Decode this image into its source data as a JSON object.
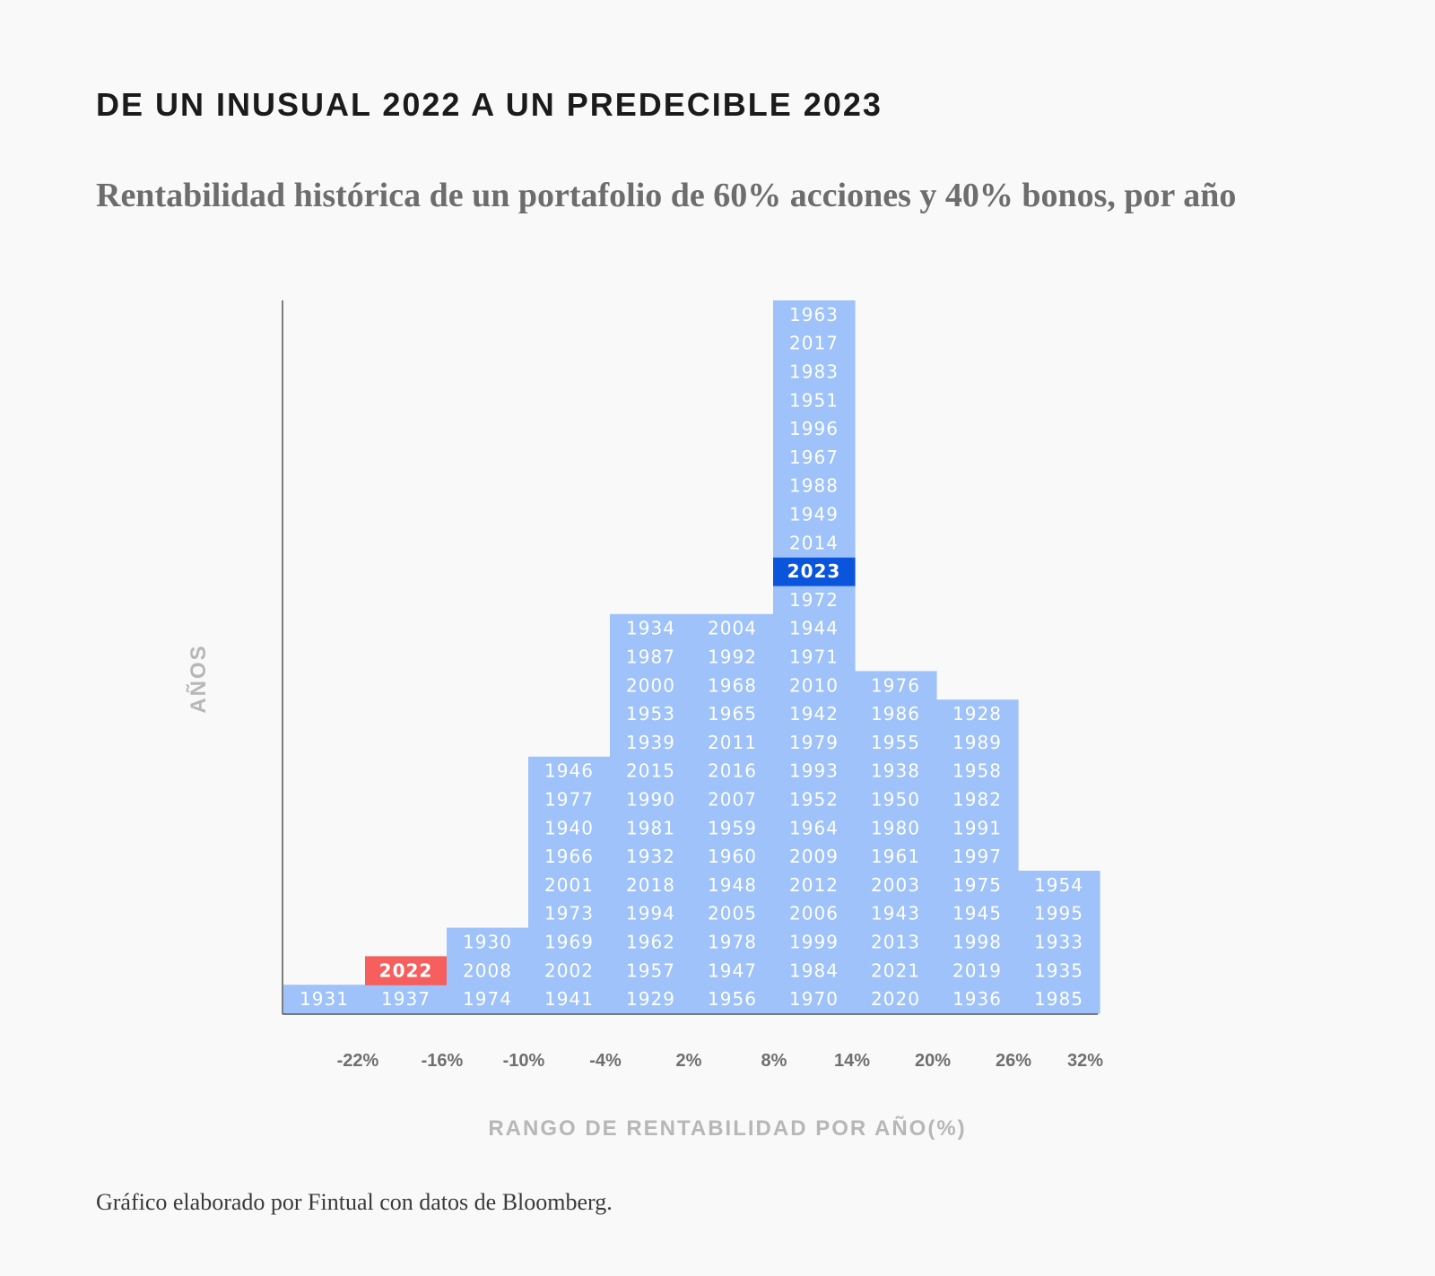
{
  "title": "DE UN INUSUAL 2022 A UN PREDECIBLE 2023",
  "subtitle": "Rentabilidad histórica de un portafolio de 60% acciones y 40% bonos, por año",
  "source": "Gráfico elaborado por Fintual con datos de Bloomberg.",
  "colors": {
    "bar": "#9ec2f9",
    "highlight_2022": "#f75e5e",
    "highlight_2023": "#0a55dc",
    "axis": "#555555",
    "background": "#f9f9f9"
  },
  "chart_data": {
    "type": "bar",
    "subtype": "stacked-histogram-of-years",
    "xlabel": "RANGO DE RENTABILIDAD POR AÑO(%)",
    "ylabel": "AÑOS",
    "tick_labels": [
      "-22%",
      "-16%",
      "-10%",
      "-4%",
      "2%",
      "8%",
      "14%",
      "20%",
      "26%",
      "32%"
    ],
    "highlights": {
      "2022": "highlight_2022",
      "2023": "highlight_2023"
    },
    "columns": [
      {
        "years": [
          "1931"
        ]
      },
      {
        "years": [
          "1937",
          "2022"
        ]
      },
      {
        "years": [
          "1974",
          "2008",
          "1930"
        ]
      },
      {
        "years": [
          "1941",
          "2002",
          "1969",
          "1973",
          "2001",
          "1966",
          "1940",
          "1977",
          "1946"
        ]
      },
      {
        "years": [
          "1929",
          "1957",
          "1962",
          "1994",
          "2018",
          "1932",
          "1981",
          "1990",
          "2015",
          "1939",
          "1953",
          "2000",
          "1987",
          "1934"
        ]
      },
      {
        "years": [
          "1956",
          "1947",
          "1978",
          "2005",
          "1948",
          "1960",
          "1959",
          "2007",
          "2016",
          "2011",
          "1965",
          "1968",
          "1992",
          "2004"
        ]
      },
      {
        "years": [
          "1970",
          "1984",
          "1999",
          "2006",
          "2012",
          "2009",
          "1964",
          "1952",
          "1993",
          "1979",
          "1942",
          "2010",
          "1971",
          "1944",
          "1972",
          "2023",
          "2014",
          "1949",
          "1988",
          "1967",
          "1996",
          "1951",
          "1983",
          "2017",
          "1963"
        ]
      },
      {
        "years": [
          "2020",
          "2021",
          "2013",
          "1943",
          "2003",
          "1961",
          "1980",
          "1950",
          "1938",
          "1955",
          "1986",
          "1976"
        ]
      },
      {
        "years": [
          "1936",
          "2019",
          "1998",
          "1945",
          "1975",
          "1997",
          "1991",
          "1982",
          "1958",
          "1989",
          "1928"
        ]
      },
      {
        "years": [
          "1985",
          "1935",
          "1933",
          "1995",
          "1954"
        ]
      }
    ]
  }
}
